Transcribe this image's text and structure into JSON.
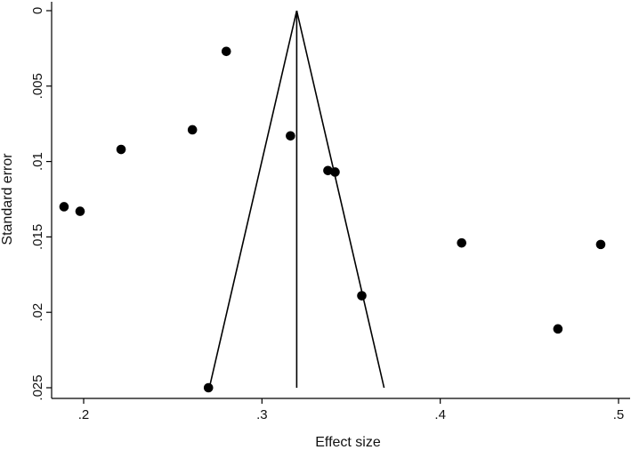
{
  "chart_data": {
    "type": "scatter",
    "title": "",
    "xlabel": "Effect size",
    "ylabel": "Standard error",
    "xlim": [
      0.19,
      0.505
    ],
    "ylim": [
      0,
      0.025
    ],
    "y_reversed": true,
    "grid": false,
    "x_ticks": [
      0.2,
      0.3,
      0.4,
      0.5
    ],
    "x_tick_labels": [
      ".2",
      ".3",
      ".4",
      ".5"
    ],
    "y_ticks": [
      0,
      0.005,
      0.01,
      0.015,
      0.02,
      0.025
    ],
    "y_tick_labels": [
      "0",
      ".005",
      ".01",
      ".015",
      ".02",
      ".025"
    ],
    "pooled_effect": 0.3195,
    "funnel": {
      "apex": [
        0.3195,
        0
      ],
      "left_base": [
        0.2705,
        0.025
      ],
      "right_base": [
        0.3685,
        0.025
      ]
    },
    "points": [
      {
        "x": 0.28,
        "y": 0.0027
      },
      {
        "x": 0.261,
        "y": 0.0079
      },
      {
        "x": 0.316,
        "y": 0.0083
      },
      {
        "x": 0.221,
        "y": 0.0092
      },
      {
        "x": 0.337,
        "y": 0.0106
      },
      {
        "x": 0.341,
        "y": 0.0107
      },
      {
        "x": 0.189,
        "y": 0.013
      },
      {
        "x": 0.198,
        "y": 0.0133
      },
      {
        "x": 0.412,
        "y": 0.0154
      },
      {
        "x": 0.49,
        "y": 0.0155
      },
      {
        "x": 0.356,
        "y": 0.0189
      },
      {
        "x": 0.466,
        "y": 0.0211
      },
      {
        "x": 0.27,
        "y": 0.025
      }
    ]
  }
}
